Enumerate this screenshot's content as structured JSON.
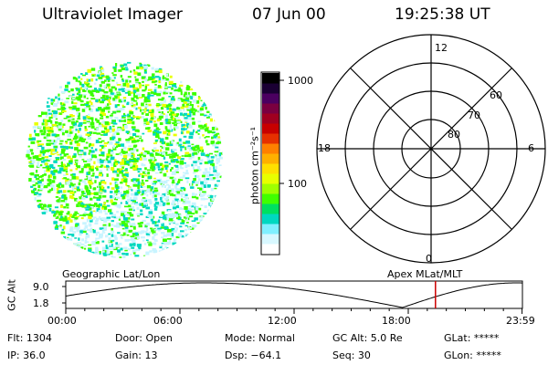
{
  "header": {
    "instrument": "Ultraviolet Imager",
    "date": "07 Jun 00",
    "time": "19:25:38 UT"
  },
  "colorbar": {
    "tick_labels": [
      "1000",
      "100"
    ],
    "unit_label": "photon cm⁻²s⁻¹",
    "colors": [
      "#000000",
      "#1a0033",
      "#4b0060",
      "#7a0040",
      "#a00020",
      "#c80000",
      "#e63000",
      "#ff8000",
      "#ffb000",
      "#ffe000",
      "#e8ff00",
      "#9fff00",
      "#40ff00",
      "#00e060",
      "#00d8c0",
      "#80f0ff",
      "#d8f8ff",
      "#ffffff"
    ]
  },
  "polar_plot": {
    "mlt_labels": [
      "12",
      "18",
      "6",
      "0"
    ],
    "lat_labels": [
      "60",
      "70",
      "80"
    ]
  },
  "altitude_panel": {
    "left_label": "Geographic Lat/Lon",
    "right_label": "Apex  MLat/MLT",
    "axis_label": "GC Alt",
    "y_ticks": [
      "9.0",
      "1.8"
    ],
    "x_ticks": [
      "00:00",
      "06:00",
      "12:00",
      "18:00",
      "23:59"
    ],
    "current_time_marker_hours": 19.43,
    "marker_color": "#cc0000"
  },
  "info": {
    "row1": [
      "Flt: 1304",
      "Door: Open",
      "Mode: Normal",
      "GC Alt: 5.0 Re",
      "GLat: *****"
    ],
    "row2": [
      "IP: 36.0",
      "Gain: 13",
      "Dsp:  −64.1",
      "Seq: 30",
      "GLon: *****"
    ]
  },
  "colors": {
    "speckle_green": "#3cff00",
    "speckle_cyan": "#00d8c0",
    "speckle_yellow": "#e8ff00",
    "speckle_light": "#c8f4ff"
  }
}
